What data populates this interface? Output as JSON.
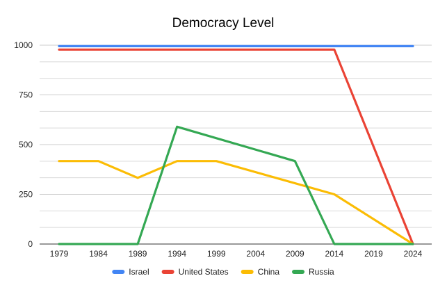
{
  "chart_data": {
    "type": "line",
    "title": "Democracy Level",
    "xlabel": "",
    "ylabel": "",
    "categories": [
      "1979",
      "1984",
      "1989",
      "1994",
      "1999",
      "2004",
      "2009",
      "2014",
      "2019",
      "2024"
    ],
    "y_ticks": [
      "0",
      "250",
      "500",
      "750",
      "1000"
    ],
    "ylim": [
      0,
      1000
    ],
    "grid": true,
    "legend_position": "bottom",
    "series": [
      {
        "name": "Israel",
        "color": "#4285f4",
        "points": [
          [
            1979,
            995
          ],
          [
            2024,
            995
          ]
        ]
      },
      {
        "name": "United States",
        "color": "#ea4335",
        "points": [
          [
            1979,
            978
          ],
          [
            2014,
            978
          ],
          [
            2024,
            0
          ]
        ]
      },
      {
        "name": "China",
        "color": "#fbbc04",
        "points": [
          [
            1979,
            417
          ],
          [
            1984,
            417
          ],
          [
            1989,
            333
          ],
          [
            1994,
            417
          ],
          [
            1999,
            417
          ],
          [
            2014,
            250
          ],
          [
            2024,
            0
          ]
        ]
      },
      {
        "name": "Russia",
        "color": "#34a853",
        "points": [
          [
            1979,
            0
          ],
          [
            1989,
            0
          ],
          [
            1994,
            590
          ],
          [
            2009,
            417
          ],
          [
            2014,
            0
          ],
          [
            2024,
            0
          ]
        ]
      }
    ]
  }
}
